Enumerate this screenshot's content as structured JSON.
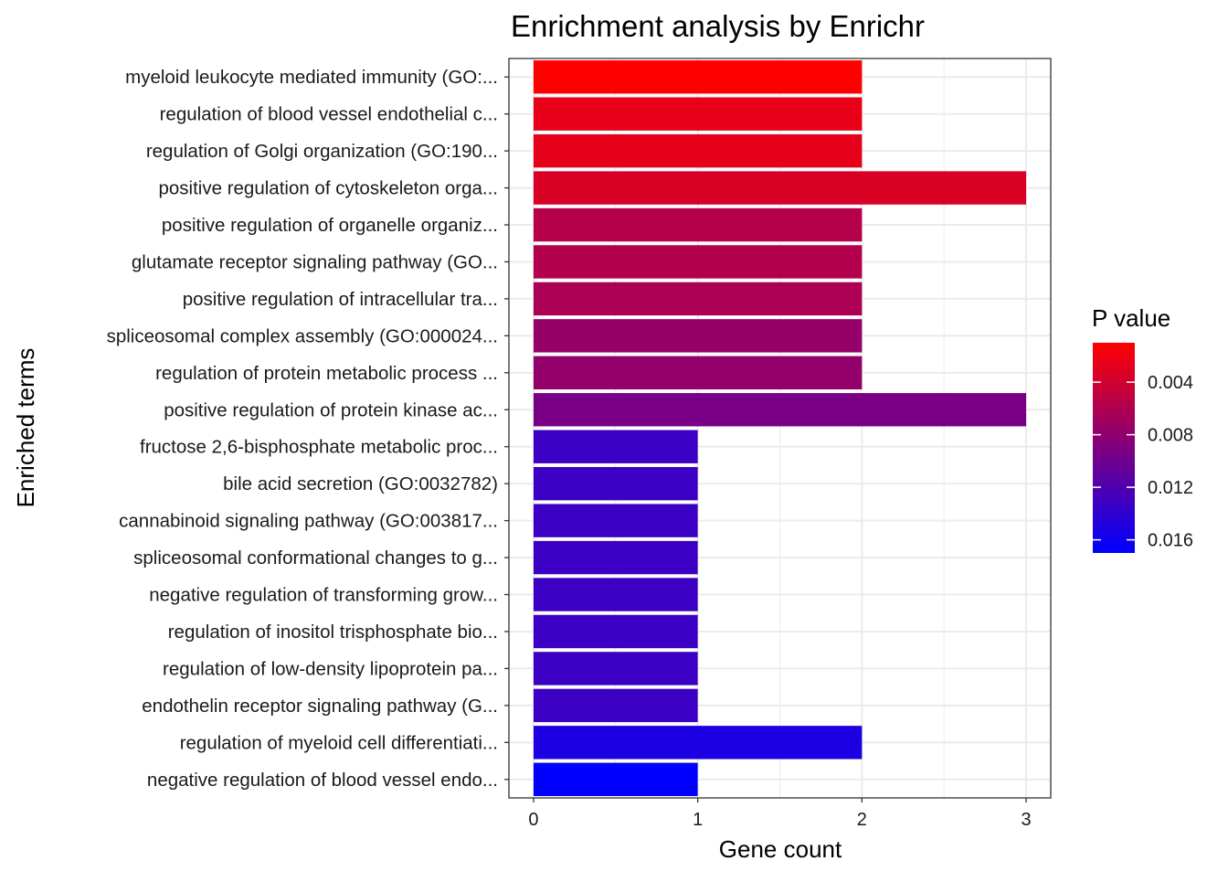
{
  "chart_data": {
    "type": "bar",
    "orientation": "horizontal",
    "title": "Enrichment analysis by Enrichr",
    "xlabel": "Gene count",
    "ylabel": "Enriched terms",
    "xlim": [
      -0.15,
      3.15
    ],
    "xticks": [
      0,
      1,
      2,
      3
    ],
    "grid": true,
    "categories": [
      "myeloid leukocyte mediated immunity (GO:...",
      "regulation of blood vessel endothelial c...",
      "regulation of Golgi organization (GO:190...",
      "positive regulation of cytoskeleton orga...",
      "positive regulation of organelle organiz...",
      "glutamate receptor signaling pathway (GO...",
      "positive regulation of intracellular tra...",
      "spliceosomal complex assembly (GO:000024...",
      "regulation of protein metabolic process ...",
      "positive regulation of protein kinase ac...",
      "fructose 2,6-bisphosphate metabolic proc...",
      "bile acid secretion (GO:0032782)",
      "cannabinoid signaling pathway (GO:003817...",
      "spliceosomal conformational changes to g...",
      "negative regulation of transforming grow...",
      "regulation of inositol trisphosphate bio...",
      "regulation of low-density lipoprotein pa...",
      "endothelin receptor signaling pathway (G...",
      "regulation of myeloid cell differentiati...",
      "negative regulation of blood vessel endo..."
    ],
    "values": [
      2,
      2,
      2,
      3,
      2,
      2,
      2,
      2,
      2,
      3,
      1,
      1,
      1,
      1,
      1,
      1,
      1,
      1,
      2,
      1
    ],
    "p_values": [
      0.001,
      0.0025,
      0.0026,
      0.0034,
      0.0056,
      0.0058,
      0.0063,
      0.0076,
      0.0078,
      0.0094,
      0.0133,
      0.0133,
      0.0133,
      0.0133,
      0.0133,
      0.0133,
      0.0133,
      0.0133,
      0.0152,
      0.017
    ],
    "legend": {
      "title": "P value",
      "placement": "right",
      "ticks": [
        0.004,
        0.008,
        0.012,
        0.016
      ],
      "tick_labels": [
        "0.004",
        "0.008",
        "0.012",
        "0.016"
      ],
      "range": [
        0.001,
        0.017
      ],
      "low_color": "#ff0000",
      "high_color": "#0000ff"
    }
  }
}
